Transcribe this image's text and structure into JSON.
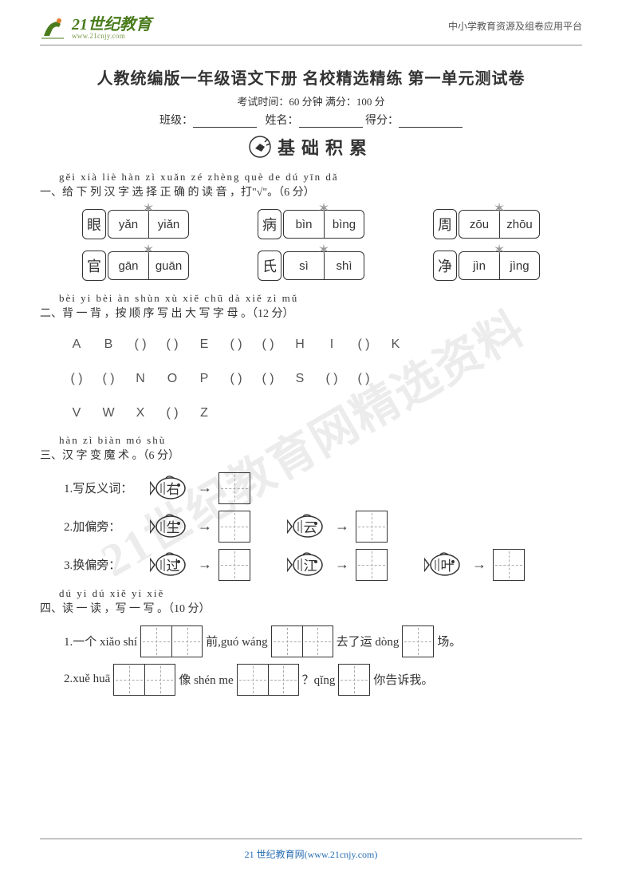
{
  "header": {
    "logo_cn": "21世纪教育",
    "logo_url": "www.21cnjy.com",
    "right_text": "中小学教育资源及组卷应用平台"
  },
  "watermark": "21世纪教育网精选资料",
  "title": "人教统编版一年级语文下册  名校精选精练  第一单元测试卷",
  "subtitle": "考试时间：60 分钟    满分：100 分",
  "form_labels": {
    "class": "班级：",
    "name": "姓名：",
    "score": "得分："
  },
  "banner": "基础积累",
  "q1": {
    "pinyin": "gěi xià liè hàn zì xuǎn zé zhèng què de dú yīn  dǎ",
    "text": "一、给  下  列  汉 字 选  择    正    确  的 读  音 ，打\"√\"。（6 分）",
    "rows": [
      [
        {
          "char": "眼",
          "p1": "yǎn",
          "p2": "yiǎn"
        },
        {
          "char": "病",
          "p1": "bìn",
          "p2": "bìng"
        },
        {
          "char": "周",
          "p1": "zōu",
          "p2": "zhōu"
        }
      ],
      [
        {
          "char": "官",
          "p1": "gān",
          "p2": "guān"
        },
        {
          "char": "氏",
          "p1": "sì",
          "p2": "shì"
        },
        {
          "char": "净",
          "p1": "jìn",
          "p2": "jìng"
        }
      ]
    ]
  },
  "q2": {
    "pinyin": "bèi yi bèi  àn shùn xù xiě chū dà xiě zì mǔ",
    "text": "二、背  一  背 ，按  顺  序  写  出  大  写 字 母 。（12 分）",
    "rows": [
      [
        "A",
        "B",
        "(    )",
        "(    )",
        "E",
        "(    )",
        "(    )",
        "H",
        "I",
        "(    )",
        "K"
      ],
      [
        "(    )",
        "(    )",
        "N",
        "O",
        "P",
        "(    )",
        "(    )",
        "S",
        "(    )",
        "(    )"
      ],
      [
        "V",
        "W",
        "X",
        "(    )",
        "Z"
      ]
    ]
  },
  "q3": {
    "pinyin": "hàn zì biàn mó shù",
    "text": "三、汉  字  变    魔  术 。（6 分）",
    "items": [
      {
        "label": "1.写反义词：",
        "chars": [
          "右"
        ]
      },
      {
        "label": "2.加偏旁：",
        "chars": [
          "生",
          "云"
        ]
      },
      {
        "label": "3.换偏旁：",
        "chars": [
          "过",
          "江",
          "叶"
        ]
      }
    ]
  },
  "q4": {
    "pinyin": "dú yi dú  xiě yi xiě",
    "text": "四、读  一  读 ，写  一  写 。（10 分）",
    "lines": [
      {
        "parts": [
          {
            "t": "1.一个 xiǎo shí"
          },
          {
            "box": 2
          },
          {
            "t": "前,guó wáng"
          },
          {
            "box": 2
          },
          {
            "t": "去了运 dòng"
          },
          {
            "box": 1
          },
          {
            "t": "场。"
          }
        ]
      },
      {
        "parts": [
          {
            "t": "2.xuě huā"
          },
          {
            "box": 2
          },
          {
            "t": "像 shén me"
          },
          {
            "box": 2
          },
          {
            "t": "？qǐng"
          },
          {
            "box": 1
          },
          {
            "t": "你告诉我。"
          }
        ]
      }
    ]
  },
  "footer": "21 世纪教育网(www.21cnjy.com)",
  "colors": {
    "logo_green": "#4a7c1e",
    "border": "#333333",
    "watermark": "rgba(200,200,200,0.35)",
    "footer": "#2a6fb5"
  }
}
